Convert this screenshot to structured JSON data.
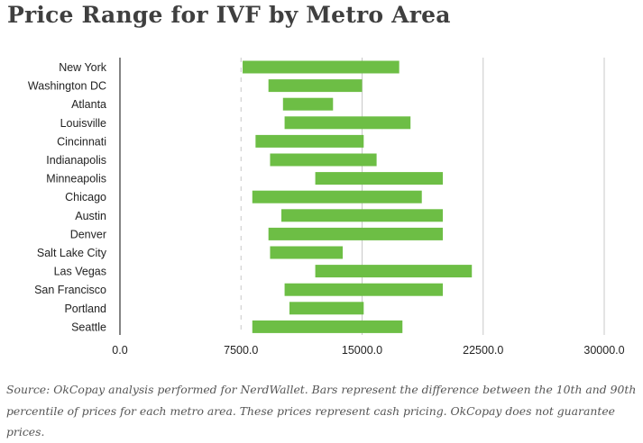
{
  "chart_data": {
    "type": "bar",
    "orientation": "horizontal",
    "title": "Price Range for IVF by Metro Area",
    "xlabel": "",
    "ylabel": "",
    "xlim": [
      0,
      30000
    ],
    "xticks": [
      "0.0",
      "7500.0",
      "15000.0",
      "22500.0",
      "30000.0"
    ],
    "grid": true,
    "legend": "none",
    "bar_color": "#6dbe45",
    "categories": [
      "New York",
      "Washington DC",
      "Atlanta",
      "Louisville",
      "Cincinnati",
      "Indianapolis",
      "Minneapolis",
      "Chicago",
      "Austin",
      "Denver",
      "Salt Lake City",
      "Las Vegas",
      "San Francisco",
      "Portland",
      "Seattle"
    ],
    "ranges": [
      [
        7600,
        17300
      ],
      [
        9200,
        15000
      ],
      [
        10100,
        13200
      ],
      [
        10200,
        18000
      ],
      [
        8400,
        15100
      ],
      [
        9300,
        15900
      ],
      [
        12100,
        20000
      ],
      [
        8200,
        18700
      ],
      [
        10000,
        20000
      ],
      [
        9200,
        20000
      ],
      [
        9300,
        13800
      ],
      [
        12100,
        21800
      ],
      [
        10200,
        20000
      ],
      [
        10500,
        15100
      ],
      [
        8200,
        17500
      ]
    ]
  },
  "caption": "Source: OkCopay analysis performed for NerdWallet. Bars represent the difference between the 10th and 90th percentile of prices for each metro area. These prices represent cash pricing. OkCopay does not guarantee prices."
}
